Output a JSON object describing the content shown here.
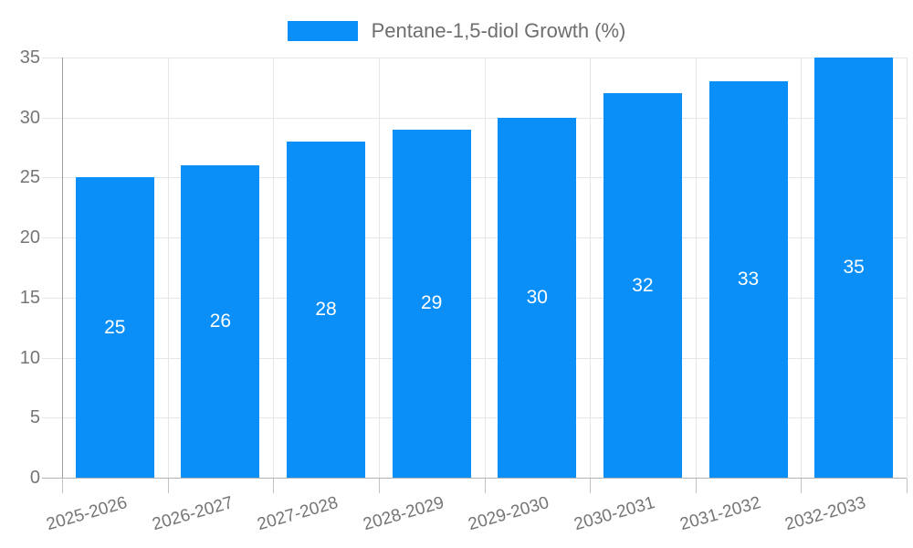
{
  "chart_data": {
    "type": "bar",
    "title": "",
    "legend": {
      "label": "Pentane-1,5-diol Growth (%)",
      "position": "top-center"
    },
    "categories": [
      "2025-2026",
      "2026-2027",
      "2027-2028",
      "2028-2029",
      "2029-2030",
      "2030-2031",
      "2031-2032",
      "2032-2033"
    ],
    "values": [
      25,
      26,
      28,
      29,
      30,
      32,
      33,
      35
    ],
    "xlabel": "",
    "ylabel": "",
    "ylim": [
      0,
      35
    ],
    "yticks": [
      0,
      5,
      10,
      15,
      20,
      25,
      30,
      35
    ],
    "grid": true,
    "bar_value_labels": {
      "visible": true,
      "position": "inside-center"
    },
    "x_tick_rotation_deg": -16,
    "colors": {
      "bar": "#0a8ff9",
      "bar_label_text": "#ffffff",
      "tick_text": "#757575",
      "legend_text": "#6e6e6e",
      "gridline": "#e6e6e6",
      "y_axis_line": "#9e9e9e",
      "x_axis_line": "#b3b3b3",
      "tick_mark": "#c2c2c2",
      "background": "#ffffff"
    }
  }
}
